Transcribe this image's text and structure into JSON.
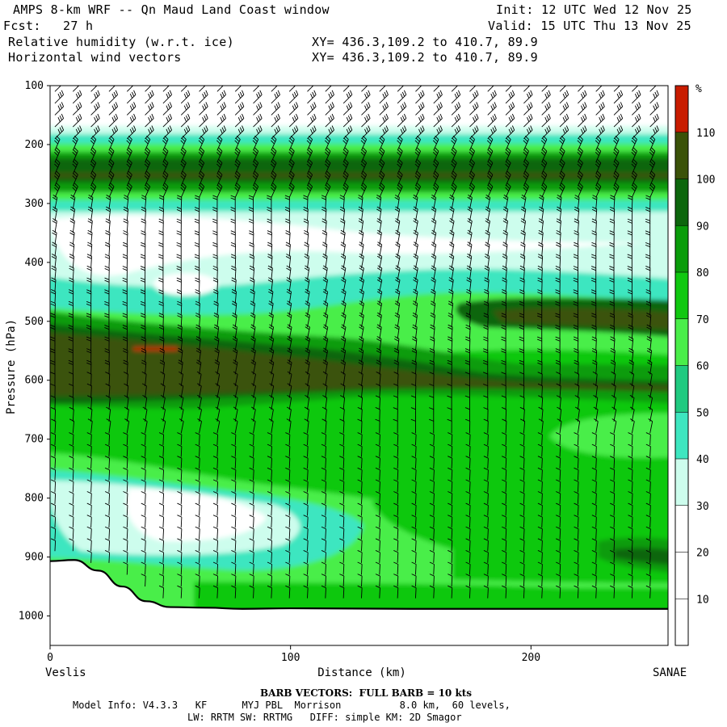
{
  "header": {
    "title": "AMPS 8-km WRF -- Qn Maud Land Coast window",
    "init": "Init: 12 UTC Wed 12 Nov 25",
    "fcst_label": "Fcst:",
    "fcst_value": "27 h",
    "valid": "Valid: 15 UTC Thu 13 Nov 25",
    "field1": "Relative humidity (w.r.t. ice)",
    "field2": "Horizontal wind vectors",
    "xy1": "XY= 436.3,109.2 to 410.7, 89.9",
    "xy2": "XY= 436.3,109.2 to 410.7, 89.9"
  },
  "footer": {
    "barb_note": "BARB VECTORS:  FULL BARB = 10 kts",
    "model_info": "Model Info: V4.3.3   KF      MYJ PBL  Morrison          8.0 km,  60 levels,",
    "physics": "LW: RRTM SW: RRTMG   DIFF: simple KM: 2D Smagor"
  },
  "colors": {
    "bins": [
      "#ffffff",
      "#ffffff",
      "#ffffff",
      "#cdfded",
      "#3ee6c0",
      "#20ca80",
      "#4aee4a",
      "#10c810",
      "#0a9c0a",
      "#0d660d",
      "#3b5209",
      "#c81c00"
    ]
  },
  "chart_data": {
    "type": "heatmap",
    "title": "Relative humidity (w.r.t. ice)",
    "ylabel": "Pressure (hPa)",
    "xlabel": "Distance (km)",
    "x_start_label": "Veslis",
    "x_end_label": "SANAE",
    "x_ticks": [
      0,
      100,
      200
    ],
    "xlim": [
      0,
      257
    ],
    "y_ticks": [
      100,
      200,
      300,
      400,
      500,
      600,
      700,
      800,
      900,
      1000
    ],
    "ylim": [
      1050,
      100
    ],
    "colorbar_unit": "%",
    "colorbar_ticks": [
      10,
      20,
      30,
      40,
      50,
      60,
      70,
      80,
      90,
      100,
      110
    ],
    "terrain_surface_hPa": {
      "x": [
        0,
        10,
        20,
        30,
        40,
        50,
        65,
        80,
        100,
        150,
        200,
        257
      ],
      "p": [
        907,
        905,
        923,
        950,
        975,
        985,
        986,
        988,
        987,
        988,
        988,
        988
      ]
    },
    "barb_full_kts": 10
  }
}
